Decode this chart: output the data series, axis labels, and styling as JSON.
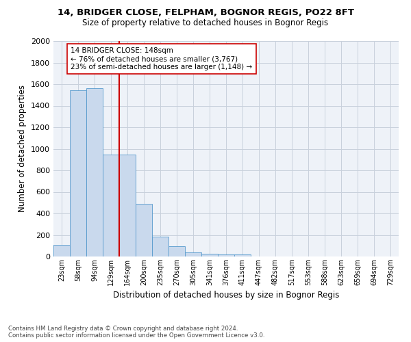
{
  "title1": "14, BRIDGER CLOSE, FELPHAM, BOGNOR REGIS, PO22 8FT",
  "title2": "Size of property relative to detached houses in Bognor Regis",
  "xlabel": "Distribution of detached houses by size in Bognor Regis",
  "ylabel": "Number of detached properties",
  "footnote": "Contains HM Land Registry data © Crown copyright and database right 2024.\nContains public sector information licensed under the Open Government Licence v3.0.",
  "bin_labels": [
    "23sqm",
    "58sqm",
    "94sqm",
    "129sqm",
    "164sqm",
    "200sqm",
    "235sqm",
    "270sqm",
    "305sqm",
    "341sqm",
    "376sqm",
    "411sqm",
    "447sqm",
    "482sqm",
    "517sqm",
    "553sqm",
    "588sqm",
    "623sqm",
    "659sqm",
    "694sqm",
    "729sqm"
  ],
  "bar_heights": [
    110,
    1540,
    1560,
    945,
    945,
    490,
    185,
    95,
    40,
    25,
    18,
    18,
    0,
    0,
    0,
    0,
    0,
    0,
    0,
    0,
    0
  ],
  "bar_color": "#c9d9ed",
  "bar_edge_color": "#5599cc",
  "vline_x_bin": 4,
  "vline_color": "#cc0000",
  "annotation_text": "14 BRIDGER CLOSE: 148sqm\n← 76% of detached houses are smaller (3,767)\n23% of semi-detached houses are larger (1,148) →",
  "annotation_box_color": "#ffffff",
  "annotation_box_edge_color": "#cc0000",
  "ylim": [
    0,
    2000
  ],
  "yticks": [
    0,
    200,
    400,
    600,
    800,
    1000,
    1200,
    1400,
    1600,
    1800,
    2000
  ],
  "grid_color": "#c8d0dc",
  "bg_color": "#eef2f8"
}
